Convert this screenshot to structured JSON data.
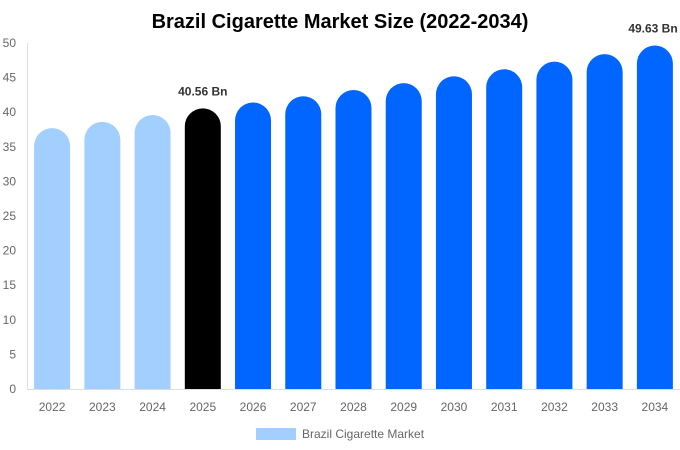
{
  "chart_data": {
    "type": "bar",
    "title": "Brazil Cigarette Market Size (2022-2034)",
    "categories": [
      "2022",
      "2023",
      "2024",
      "2025",
      "2026",
      "2027",
      "2028",
      "2029",
      "2030",
      "2031",
      "2032",
      "2033",
      "2034"
    ],
    "series": [
      {
        "name": "Brazil Cigarette Market",
        "values": [
          37.7,
          38.6,
          39.6,
          40.56,
          41.4,
          42.3,
          43.2,
          44.2,
          45.2,
          46.2,
          47.3,
          48.4,
          49.63
        ]
      }
    ],
    "data_labels": [
      {
        "category": "2025",
        "text": "40.56 Bn"
      },
      {
        "category": "2034",
        "text": "49.63 Bn"
      }
    ],
    "ylim": [
      0,
      50
    ],
    "yticks": [
      0,
      5,
      10,
      15,
      20,
      25,
      30,
      35,
      40,
      45,
      50
    ],
    "grid": false,
    "legend": "bottom",
    "colors": {
      "historical": "#a3cfff",
      "current": "#000000",
      "forecast": "#0066ff"
    }
  }
}
